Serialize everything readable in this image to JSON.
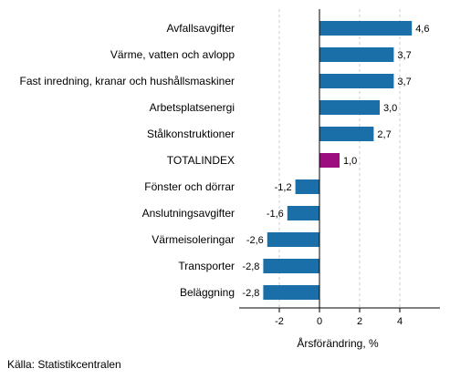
{
  "chart_data": {
    "type": "bar",
    "orientation": "horizontal",
    "categories": [
      "Avfallsavgifter",
      "Värme, vatten och avlopp",
      "Fast inredning, kranar och hushållsmaskiner",
      "Arbetsplatsenergi",
      "Stålkonstruktioner",
      "TOTALINDEX",
      "Fönster och dörrar",
      "Anslutningsavgifter",
      "Värmeisoleringar",
      "Transporter",
      "Beläggning"
    ],
    "values": [
      4.6,
      3.7,
      3.7,
      3.0,
      2.7,
      1.0,
      -1.2,
      -1.6,
      -2.6,
      -2.8,
      -2.8
    ],
    "value_labels": [
      "4,6",
      "3,7",
      "3,7",
      "3,0",
      "2,7",
      "1,0",
      "-1,2",
      "-1,6",
      "-2,6",
      "-2,8",
      "-2,8"
    ],
    "highlight_category": "TOTALINDEX",
    "colors": {
      "default": "#1a6fa8",
      "highlight": "#9c0e80",
      "grid": "#cccccc",
      "axis": "#000000"
    },
    "xlabel": "Årsförändring, %",
    "ylabel": "",
    "xlim": [
      -4,
      6
    ],
    "xticks": [
      -2,
      0,
      2,
      4
    ],
    "xtick_labels": [
      "-2",
      "0",
      "2",
      "4"
    ],
    "grid": "vertical-dashed",
    "legend": "none"
  },
  "source_text": "Källa: Statistikcentralen"
}
